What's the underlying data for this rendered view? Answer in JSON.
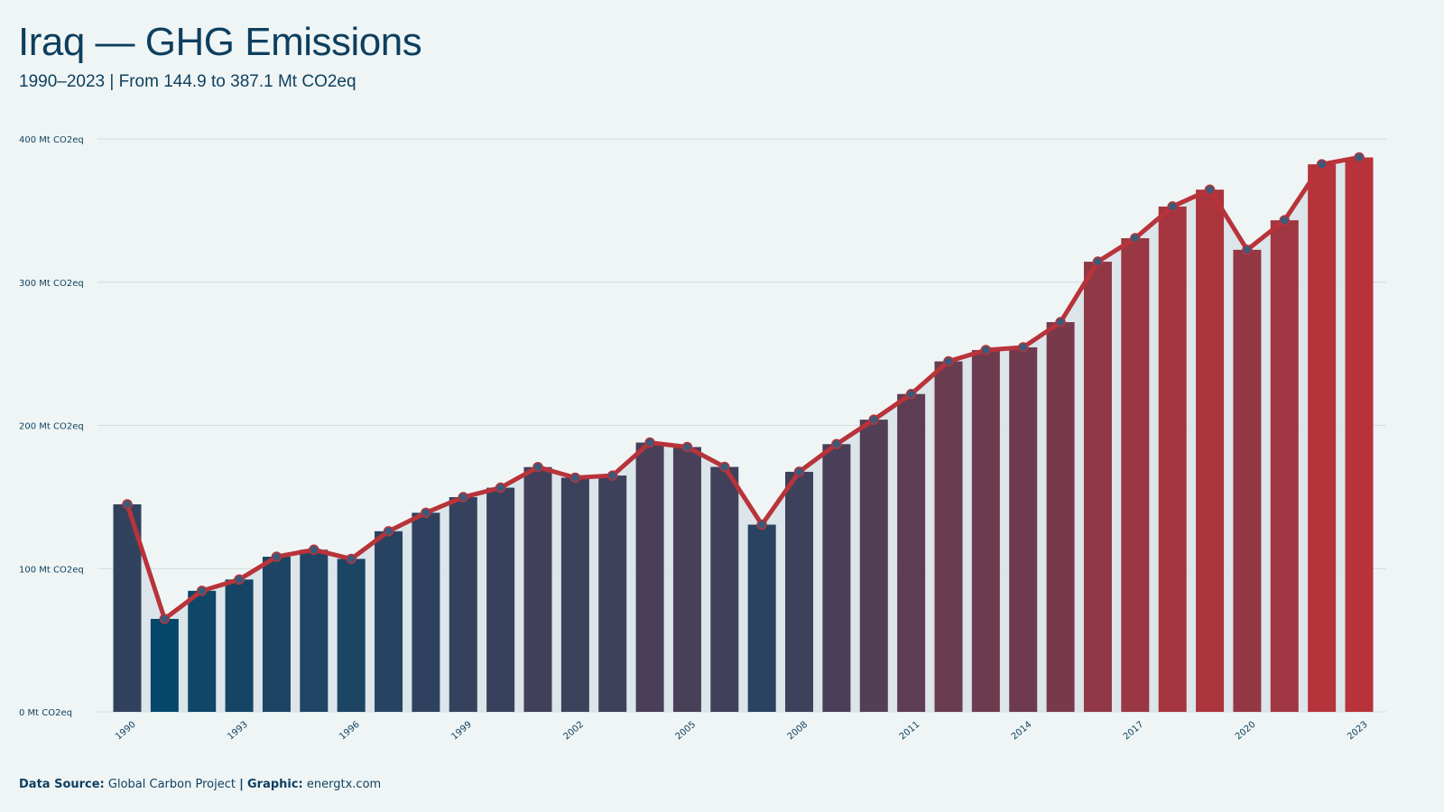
{
  "title": "Iraq — GHG Emissions",
  "subtitle": "1990–2023 | From 144.9 to 387.1 Mt CO2eq",
  "footer": {
    "source_label": "Data Source:",
    "source_value": "Global Carbon Project",
    "separator": "|",
    "graphic_label": "Graphic:",
    "graphic_value": "energtx.com"
  },
  "colors": {
    "background": "#eff5f5",
    "low": "#05476a",
    "high": "#b8333a",
    "line": "#b8333a",
    "marker": "#3c5a7a",
    "text": "#0d3f5f",
    "grid": "#d4dcdc",
    "area": "#d9e3e8"
  },
  "chart_data": {
    "type": "bar",
    "unit": "Mt CO2eq",
    "ylim": [
      0,
      400
    ],
    "yticks": [
      "0 Mt CO2eq",
      "100 Mt CO2eq",
      "200 Mt CO2eq",
      "300 Mt CO2eq",
      "400 Mt CO2eq"
    ],
    "ytick_values": [
      0,
      100,
      200,
      300,
      400
    ],
    "xtick_labels": [
      "1990",
      "1993",
      "1996",
      "1999",
      "2002",
      "2005",
      "2008",
      "2011",
      "2014",
      "2017",
      "2020",
      "2023"
    ],
    "grid": true,
    "categories": [
      "1990",
      "1991",
      "1992",
      "1993",
      "1994",
      "1995",
      "1996",
      "1997",
      "1998",
      "1999",
      "2000",
      "2001",
      "2002",
      "2003",
      "2004",
      "2005",
      "2006",
      "2007",
      "2008",
      "2009",
      "2010",
      "2011",
      "2012",
      "2013",
      "2014",
      "2015",
      "2016",
      "2017",
      "2018",
      "2019",
      "2020",
      "2021",
      "2022",
      "2023"
    ],
    "values": [
      144.9,
      64.9,
      84.5,
      92.4,
      108.3,
      113.2,
      106.8,
      126.1,
      139.0,
      149.9,
      156.5,
      170.9,
      163.5,
      165.0,
      188.0,
      184.9,
      171.0,
      130.7,
      167.6,
      186.9,
      204.0,
      221.9,
      244.7,
      252.6,
      254.5,
      272.1,
      314.3,
      330.7,
      352.8,
      364.6,
      322.6,
      343.2,
      382.3,
      387.1
    ]
  }
}
